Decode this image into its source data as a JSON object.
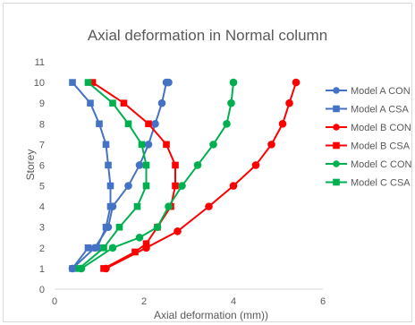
{
  "chart_data": {
    "type": "line",
    "title": "Axial deformation  in Normal column",
    "xlabel": "Axial deformation (mm))",
    "ylabel": "Storey",
    "xlim": [
      0,
      6
    ],
    "ylim": [
      0,
      11
    ],
    "xticks": [
      "0",
      "2",
      "4",
      "6"
    ],
    "yticks": [
      "0",
      "1",
      "2",
      "3",
      "4",
      "5",
      "6",
      "7",
      "8",
      "9",
      "10",
      "11"
    ],
    "grid": false,
    "legend_position": "right",
    "series": [
      {
        "name": "Model A CON",
        "color": "#4472C4",
        "marker": "circle",
        "x": [
          0.4,
          0.9,
          1.2,
          1.3,
          1.65,
          1.9,
          2.1,
          2.25,
          2.4,
          2.5,
          2.55
        ],
        "y": [
          1,
          2,
          3,
          4,
          5,
          6,
          7,
          8,
          9,
          10,
          10
        ]
      },
      {
        "name": "Model A CSA",
        "color": "#4472C4",
        "marker": "square",
        "x": [
          0.4,
          0.75,
          0.95,
          1.15,
          1.25,
          1.25,
          1.2,
          1.15,
          1.0,
          0.8,
          0.4
        ],
        "y": [
          1,
          2,
          2,
          3,
          4,
          5,
          6,
          7,
          8,
          9,
          10
        ]
      },
      {
        "name": "Model B CON",
        "color": "#FF0000",
        "marker": "circle",
        "x": [
          1.15,
          2.05,
          2.75,
          3.45,
          4.0,
          4.5,
          4.85,
          5.1,
          5.25,
          5.4
        ],
        "y": [
          1,
          2,
          2.8,
          4,
          5,
          6,
          7,
          8,
          9,
          10
        ]
      },
      {
        "name": "Model B CSA",
        "color": "#FF0000",
        "marker": "square",
        "x": [
          1.1,
          1.8,
          2.05,
          2.3,
          2.6,
          2.7,
          2.7,
          2.5,
          2.1,
          1.55,
          0.85
        ],
        "y": [
          1,
          1.8,
          2.2,
          3,
          4,
          5,
          6,
          7,
          8,
          9,
          10
        ]
      },
      {
        "name": "Model C CON",
        "color": "#00B050",
        "marker": "circle",
        "x": [
          0.6,
          1.3,
          1.9,
          2.3,
          2.55,
          2.85,
          3.2,
          3.55,
          3.85,
          3.95,
          4.0
        ],
        "y": [
          1,
          2,
          2.5,
          3,
          4,
          5,
          6,
          7,
          8,
          9,
          10
        ]
      },
      {
        "name": "Model C CSA",
        "color": "#00B050",
        "marker": "square",
        "x": [
          0.55,
          1.1,
          1.45,
          1.85,
          2.05,
          2.05,
          1.95,
          1.65,
          1.3,
          0.75
        ],
        "y": [
          1,
          2,
          3,
          4,
          5,
          6,
          7,
          8,
          9,
          10
        ]
      }
    ]
  }
}
